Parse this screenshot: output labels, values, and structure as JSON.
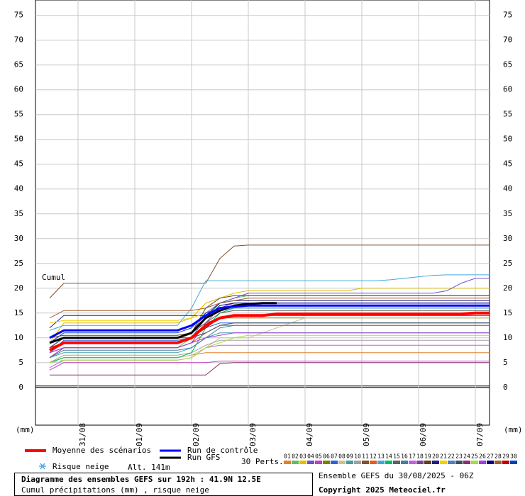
{
  "chart_data": {
    "type": "line",
    "y_label": "Cumul",
    "unit_label": "(mm)",
    "xtick_labels": [
      "31/08",
      "01/09",
      "02/09",
      "03/09",
      "04/09",
      "05/09",
      "06/09",
      "07/09"
    ],
    "ylim": [
      -7.6,
      78.1
    ],
    "yticks": [
      0,
      5,
      10,
      15,
      20,
      25,
      30,
      35,
      40,
      45,
      50,
      55,
      60,
      65,
      70,
      75
    ],
    "grid": true,
    "snow_label": "Risque neige",
    "altitude": "Alt. 141m",
    "perts_label": "30 Perts.",
    "title": "Diagramme des ensembles GEFS sur 192h : 41.9N 12.5E",
    "subtitle": "Cumul précipitations (mm) , risque neige",
    "run_info": "Ensemble GEFS du 30/08/2025 - 06Z",
    "copyright": "Copyright 2025 Meteociel.fr",
    "series": [
      {
        "name": "Moyenne des scénarios",
        "color": "#ff0000",
        "linewidth": 4,
        "values": [
          7.5,
          9,
          9,
          9,
          9,
          9,
          9,
          9,
          9,
          9,
          10,
          12.5,
          14,
          14.5,
          14.5,
          14.5,
          14.8,
          14.8,
          14.8,
          14.8,
          14.8,
          14.8,
          14.8,
          14.8,
          14.8,
          14.8,
          14.8,
          14.8,
          14.8,
          14.8,
          15,
          15
        ]
      },
      {
        "name": "Run de contrôle",
        "color": "#0000ff",
        "linewidth": 3,
        "values": [
          10,
          11.5,
          11.5,
          11.5,
          11.5,
          11.5,
          11.5,
          11.5,
          11.5,
          11.5,
          12.5,
          14.5,
          16,
          16.3,
          16.5,
          16.5,
          16.5,
          16.5,
          16.5,
          16.5,
          16.5,
          16.5,
          16.5,
          16.5,
          16.5,
          16.5,
          16.5,
          16.5,
          16.5,
          16.5,
          16.5,
          16.5
        ]
      },
      {
        "name": "Run GFS",
        "color": "#000000",
        "linewidth": 3,
        "values": [
          9,
          10,
          10,
          10,
          10,
          10,
          10,
          10,
          10,
          10,
          11,
          14,
          15.5,
          16.5,
          16.8,
          17,
          17,
          null,
          null,
          null,
          null,
          null,
          null,
          null,
          null,
          null,
          null,
          null,
          null,
          null,
          null,
          null
        ]
      },
      {
        "name": "01",
        "color": "#e08030",
        "values": [
          5,
          6,
          6,
          6,
          6,
          6,
          6,
          6,
          6,
          6,
          6.5,
          7,
          7,
          7,
          7,
          7,
          7,
          7,
          7,
          7,
          7,
          7,
          7,
          7,
          7,
          7,
          7,
          7,
          7,
          7,
          7,
          7
        ]
      },
      {
        "name": "02",
        "color": "#60c060",
        "values": [
          6,
          8,
          8,
          8,
          8,
          8,
          8,
          8,
          8,
          8,
          10,
          14,
          17,
          18,
          18.5,
          18.5,
          18.5,
          18.5,
          18.5,
          18.5,
          18.5,
          18.5,
          18.5,
          18.5,
          18.5,
          18.5,
          18.5,
          18.5,
          18.5,
          18.5,
          18.5,
          18.5
        ]
      },
      {
        "name": "03",
        "color": "#e0c000",
        "values": [
          9,
          13,
          13,
          13,
          13,
          13,
          13,
          13,
          13,
          13,
          14,
          17,
          18,
          19,
          19.5,
          19.5,
          19.5,
          19.5,
          19.5,
          19.5,
          19.5,
          19.5,
          20,
          20,
          20,
          20,
          20,
          20,
          20,
          20,
          20,
          20
        ]
      },
      {
        "name": "04",
        "color": "#7050d0",
        "values": [
          8,
          10,
          10,
          10,
          10,
          10,
          10,
          10,
          10,
          10,
          11,
          15,
          17,
          18,
          19,
          19,
          19,
          19,
          19,
          19,
          19,
          19,
          19,
          19,
          19,
          19,
          19,
          19,
          19.5,
          21,
          22,
          22
        ]
      },
      {
        "name": "05",
        "color": "#c040c0",
        "values": [
          3.5,
          5,
          5,
          5,
          5,
          5,
          5,
          5,
          5,
          5,
          5,
          5,
          5.3,
          5.3,
          5.3,
          5.3,
          5.3,
          5.3,
          5.3,
          5.3,
          5.3,
          5.3,
          5.3,
          5.3,
          5.3,
          5.3,
          5.3,
          5.3,
          5.3,
          5.3,
          5.3,
          5.3
        ]
      },
      {
        "name": "06",
        "color": "#808000",
        "values": [
          8,
          10,
          10,
          10,
          10,
          10,
          10,
          10,
          10,
          10,
          11,
          13,
          14,
          14,
          14,
          14,
          14,
          14,
          14,
          14,
          14,
          14,
          14,
          14,
          14,
          14,
          14,
          14,
          14,
          14,
          14,
          14
        ]
      },
      {
        "name": "07",
        "color": "#3060e0",
        "values": [
          7,
          9.5,
          9.5,
          9.5,
          9.5,
          9.5,
          9.5,
          9.5,
          9.5,
          9.5,
          10,
          12,
          13,
          13,
          13,
          13,
          13,
          13,
          13,
          13,
          13,
          13,
          13,
          13,
          13,
          13,
          13,
          13,
          13,
          13,
          13,
          13
        ]
      },
      {
        "name": "08",
        "color": "#d0c090",
        "values": [
          5,
          6,
          6,
          6,
          6,
          6,
          6,
          6,
          6,
          6,
          6.5,
          8,
          10,
          10,
          10,
          11,
          12,
          13,
          14,
          14,
          14,
          14,
          14,
          14,
          14,
          14,
          14,
          14,
          14,
          14,
          14,
          14
        ]
      },
      {
        "name": "09",
        "color": "#40a0a0",
        "values": [
          6,
          7,
          7,
          7,
          7,
          7,
          7,
          7,
          7,
          7,
          8,
          10,
          11,
          11,
          11,
          11,
          11,
          11,
          11,
          11,
          11,
          11,
          11,
          11,
          11,
          11,
          11,
          11,
          11,
          11,
          11,
          11
        ]
      },
      {
        "name": "10",
        "color": "#a0a0a0",
        "values": [
          5,
          6.5,
          6.5,
          6.5,
          6.5,
          6.5,
          6.5,
          6.5,
          6.5,
          6.5,
          7,
          8.5,
          9.5,
          9.5,
          9.5,
          9.5,
          9.5,
          9.5,
          9.5,
          9.5,
          9.5,
          9.5,
          9.5,
          9.5,
          9.5,
          9.5,
          9.5,
          9.5,
          9.5,
          9.5,
          9.5,
          9.5
        ]
      },
      {
        "name": "11",
        "color": "#805030",
        "values": [
          18,
          21,
          21,
          21,
          21,
          21,
          21,
          21,
          21,
          21,
          21,
          21,
          26,
          28.5,
          28.7,
          28.7,
          28.7,
          28.7,
          28.7,
          28.7,
          28.7,
          28.7,
          28.7,
          28.7,
          28.7,
          28.7,
          28.7,
          28.7,
          28.7,
          28.7,
          28.7,
          28.7
        ]
      },
      {
        "name": "12",
        "color": "#e06020",
        "values": [
          7,
          8,
          8,
          8,
          8,
          8,
          8,
          8,
          8,
          8,
          9,
          11,
          12.5,
          12.5,
          12.5,
          12.5,
          12.5,
          12.5,
          12.5,
          12.5,
          12.5,
          12.5,
          12.5,
          12.5,
          12.5,
          12.5,
          12.5,
          12.5,
          12.5,
          12.5,
          12.5,
          12.5
        ]
      },
      {
        "name": "13",
        "color": "#40a8e0",
        "values": [
          11.5,
          12.5,
          12.5,
          12.5,
          12.5,
          12.5,
          12.5,
          12.5,
          12.5,
          12.5,
          16,
          21.5,
          21.5,
          21.5,
          21.5,
          21.5,
          21.5,
          21.5,
          21.5,
          21.5,
          21.5,
          21.5,
          21.5,
          21.5,
          21.7,
          22,
          22.3,
          22.6,
          22.7,
          22.7,
          22.7,
          22.7
        ]
      },
      {
        "name": "14",
        "color": "#00c060",
        "values": [
          5,
          6,
          6,
          6,
          6,
          6,
          6,
          6,
          6,
          6,
          7,
          12,
          15,
          16,
          16,
          16,
          16,
          16,
          16,
          16,
          16,
          16,
          16,
          16,
          16,
          16,
          16,
          16,
          16,
          16,
          16,
          16
        ]
      },
      {
        "name": "15",
        "color": "#606060",
        "values": [
          9,
          10,
          10,
          10,
          10,
          10,
          10,
          10,
          10,
          10,
          11,
          13,
          15,
          15.5,
          15.5,
          15.5,
          15.5,
          15.5,
          15.5,
          15.5,
          15.5,
          15.5,
          15.5,
          15.5,
          15.5,
          15.5,
          15.5,
          15.5,
          15.5,
          15.5,
          15.5,
          15.5
        ]
      },
      {
        "name": "16",
        "color": "#4080a0",
        "values": [
          6,
          7.5,
          7.5,
          7.5,
          7.5,
          7.5,
          7.5,
          7.5,
          7.5,
          7.5,
          8,
          10,
          12,
          12.5,
          12.5,
          12.5,
          12.5,
          12.5,
          12.5,
          12.5,
          12.5,
          12.5,
          12.5,
          12.5,
          12.5,
          12.5,
          12.5,
          12.5,
          12.5,
          12.5,
          12.5,
          12.5
        ]
      },
      {
        "name": "17",
        "color": "#c060e0",
        "values": [
          4,
          5.5,
          5.5,
          5.5,
          5.5,
          5.5,
          5.5,
          5.5,
          5.5,
          5.5,
          6,
          8,
          8.5,
          8.5,
          8.5,
          8.5,
          8.5,
          8.5,
          8.5,
          8.5,
          8.5,
          8.5,
          8.5,
          8.5,
          8.5,
          8.5,
          8.5,
          8.5,
          8.5,
          8.5,
          8.5,
          8.5
        ]
      },
      {
        "name": "18",
        "color": "#8040a0",
        "values": [
          6,
          8,
          8,
          8,
          8,
          8,
          8,
          8,
          8,
          8,
          9,
          13,
          16,
          17,
          17,
          17,
          17,
          17,
          17,
          17,
          17,
          17,
          17,
          17,
          17,
          17,
          17,
          17,
          17,
          17,
          17,
          17
        ]
      },
      {
        "name": "19",
        "color": "#604020",
        "values": [
          10,
          10.5,
          10.5,
          10.5,
          10.5,
          10.5,
          10.5,
          10.5,
          10.5,
          10.5,
          11,
          16,
          18,
          18.5,
          18.5,
          18.5,
          18.5,
          18.5,
          18.5,
          18.5,
          18.5,
          18.5,
          18.5,
          18.5,
          18.5,
          18.5,
          18.5,
          18.5,
          18.5,
          18.5,
          18.5,
          18.5
        ]
      },
      {
        "name": "20",
        "color": "#202080",
        "values": [
          12,
          14.5,
          14.5,
          14.5,
          14.5,
          14.5,
          14.5,
          14.5,
          14.5,
          14.5,
          14.5,
          14.5,
          17,
          17.5,
          17.5,
          17.5,
          17.5,
          17.5,
          17.5,
          17.5,
          17.5,
          17.5,
          17.5,
          17.5,
          17.5,
          17.5,
          17.5,
          17.5,
          17.5,
          17.5,
          17.5,
          17.5
        ]
      },
      {
        "name": "21",
        "color": "#f0d000",
        "values": [
          13,
          13.5,
          13.5,
          13.5,
          13.5,
          13.5,
          13.5,
          13.5,
          13.5,
          13.5,
          14,
          15,
          16,
          16.5,
          16.5,
          16.5,
          16.5,
          16.5,
          16.5,
          16.5,
          16.5,
          16.5,
          16.5,
          16.5,
          16.5,
          16.5,
          16.5,
          16.5,
          16.5,
          16.5,
          16.5,
          16.5
        ]
      },
      {
        "name": "22",
        "color": "#5080c0",
        "values": [
          7,
          9,
          9,
          9,
          9,
          9,
          9,
          9,
          9,
          9,
          10,
          14,
          15.5,
          16,
          16,
          16,
          16,
          16,
          16,
          16,
          16,
          16,
          16,
          16,
          16,
          16,
          16,
          16,
          16,
          16,
          16,
          16
        ]
      },
      {
        "name": "23",
        "color": "#405060",
        "values": [
          8,
          10,
          10,
          10,
          10,
          10,
          10,
          10,
          10,
          10,
          10,
          11,
          12.5,
          13,
          13,
          13,
          13,
          13,
          13,
          13,
          13,
          13,
          13,
          13,
          13,
          13,
          13,
          13,
          13,
          13,
          13,
          13
        ]
      },
      {
        "name": "24",
        "color": "#903070",
        "values": [
          2.5,
          2.5,
          2.5,
          2.5,
          2.5,
          2.5,
          2.5,
          2.5,
          2.5,
          2.5,
          2.5,
          2.5,
          4.8,
          5,
          5,
          5,
          5,
          5,
          5,
          5,
          5,
          5,
          5,
          5,
          5,
          5,
          5,
          5,
          5,
          5,
          5,
          5
        ]
      },
      {
        "name": "25",
        "color": "#a0e040",
        "values": [
          5,
          5.5,
          5.5,
          5.5,
          5.5,
          5.5,
          5.5,
          5.5,
          5.5,
          5.5,
          6,
          8,
          9,
          10,
          10.5,
          10.5,
          10.5,
          10.5,
          10.5,
          10.5,
          10.5,
          10.5,
          10.5,
          10.5,
          10.5,
          10.5,
          10.5,
          10.5,
          10.5,
          10.5,
          10.5,
          10.5
        ]
      },
      {
        "name": "26",
        "color": "#a040e0",
        "values": [
          7,
          8,
          8,
          8,
          8,
          8,
          8,
          8,
          8,
          8,
          9,
          10,
          10.5,
          11,
          11,
          11,
          11,
          11,
          11,
          11,
          11,
          11,
          11,
          11,
          11,
          11,
          11,
          11,
          11,
          11,
          11,
          11
        ]
      },
      {
        "name": "27",
        "color": "#000080",
        "values": [
          9,
          10,
          10,
          10,
          10,
          10,
          10,
          10,
          10,
          10,
          11,
          14,
          16.5,
          17,
          17,
          17,
          17,
          17,
          17,
          17,
          17,
          17,
          17,
          17,
          17,
          17,
          17,
          17,
          17,
          17,
          17,
          17
        ]
      },
      {
        "name": "28",
        "color": "#a06030",
        "values": [
          14,
          15.5,
          15.5,
          15.5,
          15.5,
          15.5,
          15.5,
          15.5,
          15.5,
          15.5,
          15.5,
          16,
          17,
          17.5,
          18,
          18,
          18,
          18,
          18,
          18,
          18,
          18,
          18,
          18,
          18,
          18,
          18,
          18,
          18,
          18,
          18,
          18
        ]
      },
      {
        "name": "29",
        "color": "#c00000",
        "values": [
          8,
          9,
          9,
          9,
          9,
          9,
          9,
          9,
          9,
          9,
          10,
          12,
          14,
          14.5,
          14.5,
          14.5,
          14.5,
          14.5,
          14.5,
          14.5,
          14.5,
          14.5,
          14.5,
          14.5,
          14.5,
          14.5,
          14.5,
          14.5,
          14.5,
          14.5,
          14.5,
          14.5
        ]
      },
      {
        "name": "30",
        "color": "#0040c0",
        "values": [
          9,
          11,
          11,
          11,
          11,
          11,
          11,
          11,
          11,
          11,
          12,
          15,
          16,
          16.5,
          16.5,
          16.5,
          16.5,
          16.5,
          16.5,
          16.5,
          16.5,
          16.5,
          16.5,
          16.5,
          16.5,
          16.5,
          16.5,
          16.5,
          16.5,
          16.5,
          16.5,
          16.5
        ]
      }
    ]
  }
}
